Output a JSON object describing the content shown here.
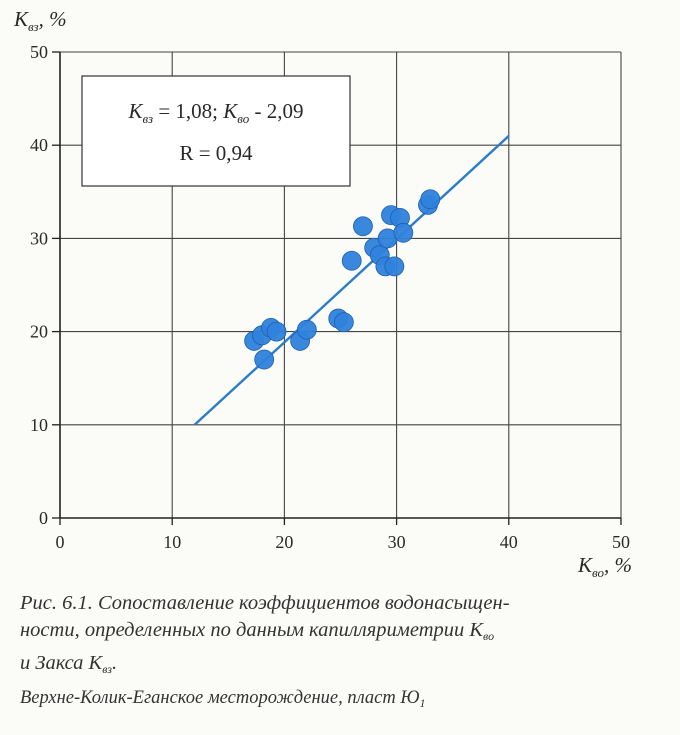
{
  "chart_data": {
    "type": "scatter",
    "x_axis": {
      "label_main": "K",
      "label_sub": "во",
      "label_unit": ", %",
      "range": [
        0,
        50
      ],
      "ticks": [
        0,
        10,
        20,
        30,
        40,
        50
      ],
      "tick_labels": [
        "0",
        "10",
        "20",
        "30",
        "40",
        "50"
      ]
    },
    "y_axis": {
      "label_main": "K",
      "label_sub": "вз",
      "label_unit": ", %",
      "range": [
        0,
        50
      ],
      "ticks": [
        0,
        10,
        20,
        30,
        40,
        50
      ],
      "tick_labels": [
        "0",
        "10",
        "20",
        "30",
        "40",
        "50"
      ]
    },
    "grid": true,
    "points": [
      {
        "x": 17.3,
        "y": 19.0
      },
      {
        "x": 18.0,
        "y": 19.6
      },
      {
        "x": 18.8,
        "y": 20.4
      },
      {
        "x": 19.3,
        "y": 20.0
      },
      {
        "x": 18.2,
        "y": 17.0
      },
      {
        "x": 21.4,
        "y": 19.0
      },
      {
        "x": 22.0,
        "y": 20.2
      },
      {
        "x": 24.8,
        "y": 21.4
      },
      {
        "x": 25.3,
        "y": 21.0
      },
      {
        "x": 26.0,
        "y": 27.6
      },
      {
        "x": 27.0,
        "y": 31.3
      },
      {
        "x": 28.0,
        "y": 29.0
      },
      {
        "x": 28.5,
        "y": 28.2
      },
      {
        "x": 29.0,
        "y": 27.0
      },
      {
        "x": 29.2,
        "y": 30.0
      },
      {
        "x": 29.5,
        "y": 32.5
      },
      {
        "x": 29.8,
        "y": 27.0
      },
      {
        "x": 30.3,
        "y": 32.2
      },
      {
        "x": 30.6,
        "y": 30.6
      },
      {
        "x": 32.8,
        "y": 33.6
      },
      {
        "x": 33.0,
        "y": 34.2
      }
    ],
    "trendline": {
      "x1": 12,
      "y1": 10.0,
      "x2": 40,
      "y2": 41.0
    },
    "annotation": {
      "eq_k1_main": "K",
      "eq_k1_sub": "вз",
      "eq_middle": " = 1,08;  ",
      "eq_k2_main": "K",
      "eq_k2_sub": "во",
      "eq_tail": " - 2,09",
      "r_line": "R = 0,94"
    },
    "point_color": "#2f82dc",
    "line_color": "#2c7cc8"
  },
  "caption": {
    "line1": "Рис. 6.1. Сопоставление коэффициентов водонасыщен-",
    "line2": "ности, определенных по данным капилляриметрии K",
    "line2_sub": "во",
    "line3_pre": "и Закса K",
    "line3_sub": "вз",
    "line3_post": ".",
    "source": "Верхне-Колик-Еганское месторождение, пласт Ю",
    "source_sub": "1"
  }
}
